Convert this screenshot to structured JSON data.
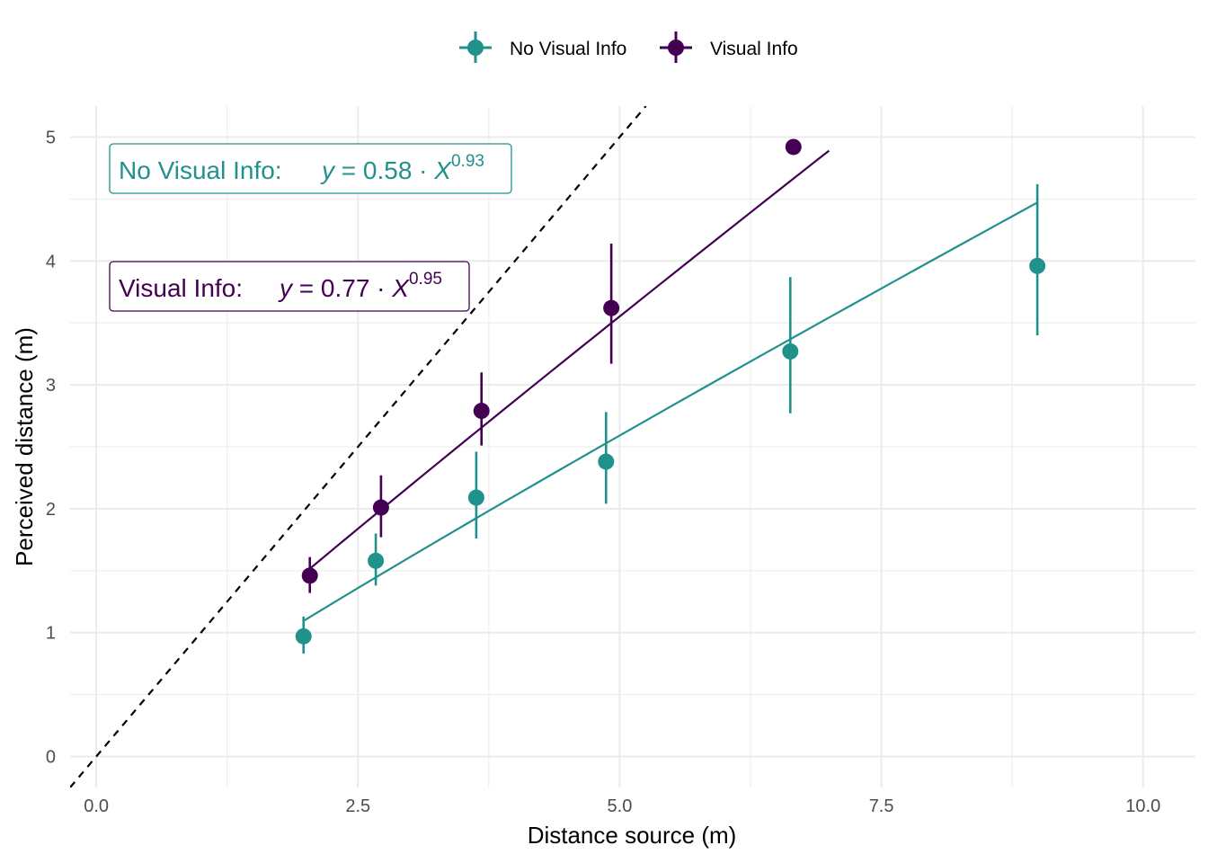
{
  "chart_data": {
    "type": "scatter",
    "xlabel": "Distance source (m)",
    "ylabel": "Perceived distance (m)",
    "xlim": [
      -0.25,
      10.5
    ],
    "ylim": [
      -0.25,
      5.25
    ],
    "x_ticks": [
      {
        "value": 0,
        "label": "0.0"
      },
      {
        "value": 2.5,
        "label": "2.5"
      },
      {
        "value": 5,
        "label": "5.0"
      },
      {
        "value": 7.5,
        "label": "7.5"
      },
      {
        "value": 10,
        "label": "10.0"
      }
    ],
    "y_ticks": [
      {
        "value": 0,
        "label": "0"
      },
      {
        "value": 1,
        "label": "1"
      },
      {
        "value": 2,
        "label": "2"
      },
      {
        "value": 3,
        "label": "3"
      },
      {
        "value": 4,
        "label": "4"
      },
      {
        "value": 5,
        "label": "5"
      }
    ],
    "x_minor_ticks": [
      1.25,
      3.75,
      6.25,
      8.75
    ],
    "y_minor_ticks": [
      0.5,
      1.5,
      2.5,
      3.5,
      4.5
    ],
    "grid": true,
    "legend_position": "top",
    "identity_line": {
      "style": "dashed",
      "color": "#000000"
    },
    "series": [
      {
        "name": "No Visual Info",
        "color": "#21918C",
        "points": [
          {
            "x": 1.98,
            "y": 0.97,
            "ymin": 0.83,
            "ymax": 1.13
          },
          {
            "x": 2.67,
            "y": 1.58,
            "ymin": 1.38,
            "ymax": 1.8
          },
          {
            "x": 3.63,
            "y": 2.09,
            "ymin": 1.76,
            "ymax": 2.46
          },
          {
            "x": 4.87,
            "y": 2.38,
            "ymin": 2.04,
            "ymax": 2.78
          },
          {
            "x": 6.63,
            "y": 3.27,
            "ymin": 2.77,
            "ymax": 3.87
          },
          {
            "x": 8.99,
            "y": 3.96,
            "ymin": 3.4,
            "ymax": 4.62
          }
        ],
        "fit": {
          "a": 0.58,
          "b": 0.93,
          "x_from": 1.98,
          "x_to": 8.99
        },
        "annotation": {
          "label": "No Visual Info:",
          "eq_y": "y",
          "eq_eq": " = 0.58 · ",
          "eq_x": "X",
          "eq_exp": "0.93"
        }
      },
      {
        "name": "Visual Info",
        "color": "#440154",
        "points": [
          {
            "x": 2.04,
            "y": 1.46,
            "ymin": 1.32,
            "ymax": 1.61
          },
          {
            "x": 2.72,
            "y": 2.01,
            "ymin": 1.77,
            "ymax": 2.27
          },
          {
            "x": 3.68,
            "y": 2.79,
            "ymin": 2.51,
            "ymax": 3.1
          },
          {
            "x": 4.92,
            "y": 3.62,
            "ymin": 3.17,
            "ymax": 4.14
          },
          {
            "x": 6.66,
            "y": 4.92,
            "ymin": 4.92,
            "ymax": 4.92
          }
        ],
        "fit": {
          "a": 0.77,
          "b": 0.95,
          "x_from": 2.04,
          "x_to": 7.0
        },
        "annotation": {
          "label": "Visual Info:",
          "eq_y": "y",
          "eq_eq": " = 0.77 · ",
          "eq_x": "X",
          "eq_exp": "0.95"
        }
      }
    ]
  }
}
